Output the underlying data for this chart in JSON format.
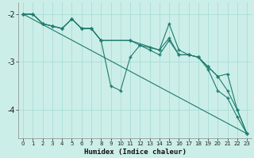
{
  "xlabel": "Humidex (Indice chaleur)",
  "bg_color": "#cceee8",
  "grid_color": "#aaddd8",
  "line_color": "#1e7b6e",
  "xlim": [
    -0.5,
    23.5
  ],
  "ylim": [
    -4.6,
    -1.75
  ],
  "yticks": [
    -4,
    -3,
    -2
  ],
  "xticks": [
    0,
    1,
    2,
    3,
    4,
    5,
    6,
    7,
    8,
    9,
    10,
    11,
    12,
    13,
    14,
    15,
    16,
    17,
    18,
    19,
    20,
    21,
    22,
    23
  ],
  "series": [
    {
      "x": [
        0,
        1,
        2,
        3,
        4,
        5,
        6,
        7,
        8,
        9,
        10,
        11,
        12,
        13,
        14,
        15,
        16,
        17,
        18,
        19,
        20,
        21,
        22,
        23
      ],
      "y": [
        -2.0,
        -2.0,
        -2.2,
        -2.25,
        -2.3,
        -2.1,
        -2.3,
        -2.3,
        -2.55,
        -3.5,
        -3.6,
        -2.9,
        -2.65,
        -2.75,
        -2.85,
        -2.55,
        -2.85,
        -2.85,
        -2.9,
        -3.1,
        -3.3,
        -3.25,
        -4.0,
        -4.5
      ],
      "markers": true
    },
    {
      "x": [
        0,
        1,
        2,
        3,
        4,
        5,
        6,
        7,
        8,
        11,
        12,
        13,
        14,
        15,
        16,
        17,
        18,
        19,
        20,
        21,
        22,
        23
      ],
      "y": [
        -2.0,
        -2.0,
        -2.2,
        -2.25,
        -2.3,
        -2.1,
        -2.3,
        -2.3,
        -2.55,
        -2.55,
        -2.65,
        -2.7,
        -2.75,
        -2.2,
        -2.75,
        -2.85,
        -2.9,
        -3.1,
        -3.3,
        -3.6,
        -4.0,
        -4.5
      ],
      "markers": true
    },
    {
      "x": [
        0,
        1,
        2,
        3,
        4,
        5,
        6,
        7,
        8,
        11,
        14,
        15,
        16,
        17,
        18,
        19,
        20,
        21,
        22,
        23
      ],
      "y": [
        -2.0,
        -2.0,
        -2.2,
        -2.25,
        -2.3,
        -2.1,
        -2.3,
        -2.3,
        -2.55,
        -2.55,
        -2.75,
        -2.5,
        -2.85,
        -2.85,
        -2.9,
        -3.15,
        -3.6,
        -3.75,
        -4.15,
        -4.5
      ],
      "markers": true
    },
    {
      "x": [
        0,
        23
      ],
      "y": [
        -2.0,
        -4.5
      ],
      "markers": false
    }
  ]
}
